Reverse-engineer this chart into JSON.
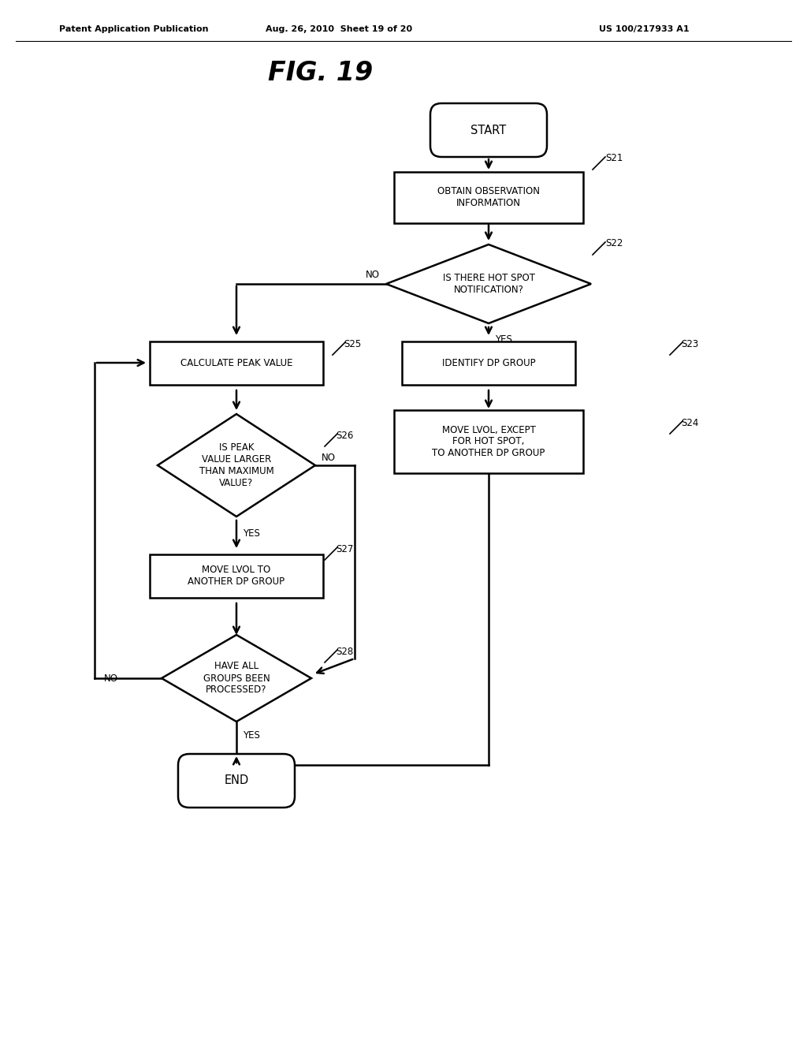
{
  "background_color": "#ffffff",
  "header_left": "Patent Application Publication",
  "header_mid": "Aug. 26, 2010  Sheet 19 of 20",
  "header_right": "US 100/217933 A1",
  "title": "FIG. 19",
  "font_size_node": 8.5,
  "font_size_label": 8.5,
  "font_size_header": 8,
  "font_size_title": 24
}
